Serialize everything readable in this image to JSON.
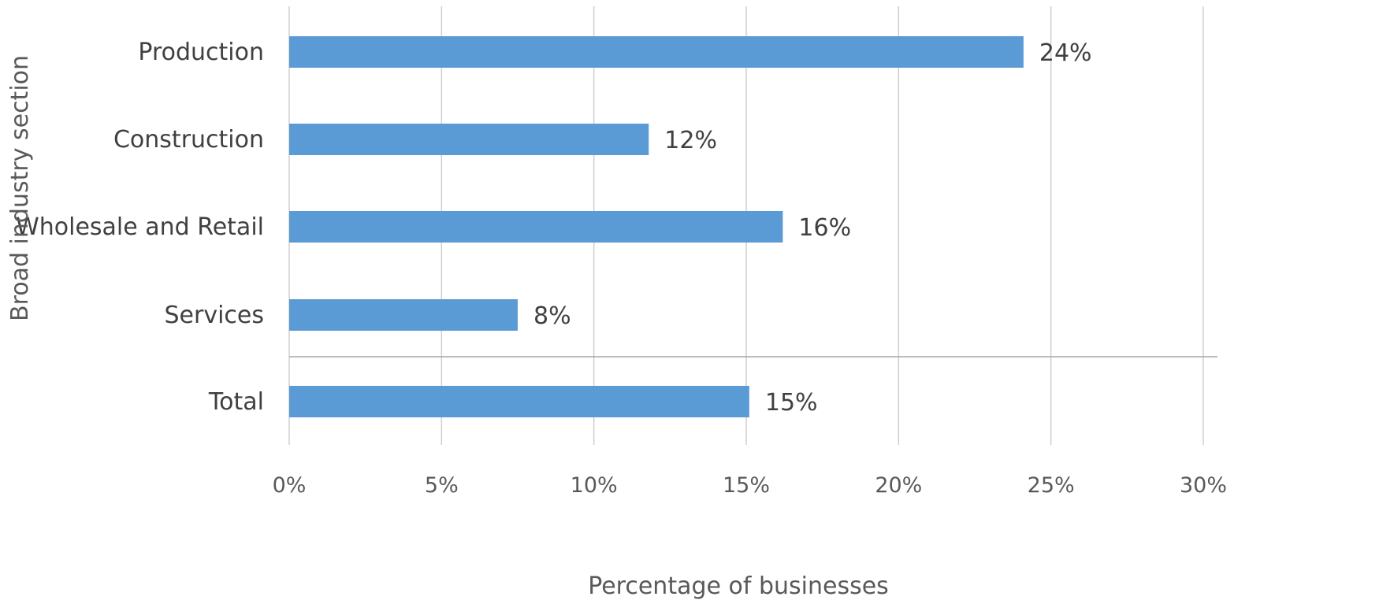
{
  "chart_data": {
    "type": "bar",
    "orientation": "horizontal",
    "categories": [
      "Production",
      "Construction",
      "Wholesale and Retail",
      "Services",
      "Total"
    ],
    "values": [
      24.1,
      11.8,
      16.2,
      7.5,
      15.1
    ],
    "data_labels": [
      "24%",
      "12%",
      "16%",
      "8%",
      "15%"
    ],
    "xlabel": "Percentage of businesses",
    "ylabel": "Broad industry section",
    "xlim": [
      0,
      30
    ],
    "xticks": [
      0,
      5,
      10,
      15,
      20,
      25,
      30
    ],
    "xtick_labels": [
      "0%",
      "5%",
      "10%",
      "15%",
      "20%",
      "25%",
      "30%"
    ],
    "grid": "vertical",
    "separator_before": "Total",
    "colors": {
      "bar": "#5b9bd5",
      "grid": "#d0d0d0",
      "separator": "#a6a6a6"
    }
  }
}
